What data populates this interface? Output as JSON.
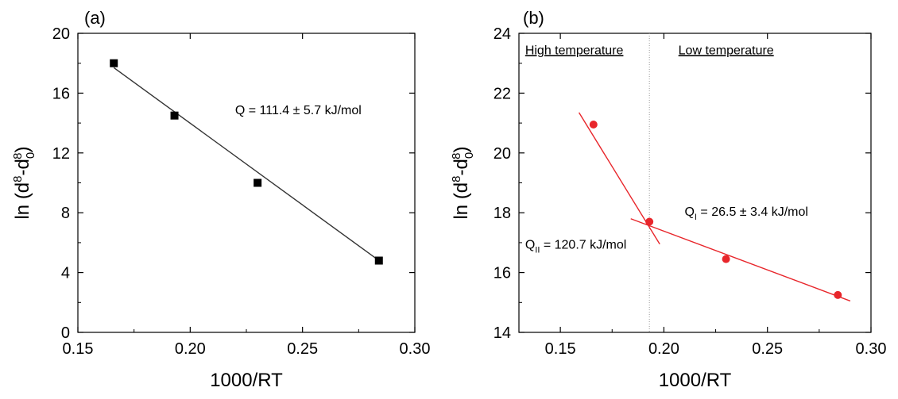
{
  "chart_data": [
    {
      "type": "scatter",
      "panel_label": "(a)",
      "xlabel": "1000/RT",
      "ylabel": "ln (d8-d08)",
      "xlim": [
        0.15,
        0.3
      ],
      "ylim": [
        0,
        20
      ],
      "xticks": [
        "0.15",
        "0.20",
        "0.25",
        "0.30"
      ],
      "yticks": [
        "0",
        "4",
        "8",
        "12",
        "16",
        "20"
      ],
      "marker": "square",
      "color": "#000000",
      "series": [
        {
          "x": [
            0.166,
            0.193,
            0.23,
            0.284
          ],
          "y": [
            18.0,
            14.5,
            10.0,
            4.8
          ]
        }
      ],
      "fit_lines": [
        {
          "x": [
            0.166,
            0.285
          ],
          "y": [
            17.7,
            4.7
          ],
          "color": "#333333"
        }
      ],
      "annotations": [
        {
          "text": "Q = 111.4 ± 5.7 kJ/mol",
          "x": 0.22,
          "y": 14.6
        }
      ]
    },
    {
      "type": "scatter",
      "panel_label": "(b)",
      "xlabel": "1000/RT",
      "ylabel": "ln (d8-d08)",
      "xlim": [
        0.13,
        0.3
      ],
      "ylim": [
        14,
        24
      ],
      "xticks": [
        "0.15",
        "0.20",
        "0.25",
        "0.30"
      ],
      "yticks": [
        "14",
        "16",
        "18",
        "20",
        "22",
        "24"
      ],
      "marker": "circle",
      "color": "#e8262b",
      "series": [
        {
          "x": [
            0.166,
            0.193,
            0.23,
            0.284
          ],
          "y": [
            20.95,
            17.7,
            16.45,
            15.25
          ]
        }
      ],
      "fit_lines": [
        {
          "x": [
            0.159,
            0.198
          ],
          "y": [
            21.35,
            16.95
          ],
          "color": "#e8262b"
        },
        {
          "x": [
            0.184,
            0.29
          ],
          "y": [
            17.8,
            15.05
          ],
          "color": "#e8262b"
        }
      ],
      "divider_x": 0.193,
      "regions": [
        {
          "text": "High temperature",
          "x": 0.133,
          "y": 23.3
        },
        {
          "text": "Low temperature",
          "x": 0.207,
          "y": 23.3
        }
      ],
      "annotations": [
        {
          "main": "Q",
          "sub": "I",
          "rest": " = 26.5 ± 3.4 kJ/mol",
          "x": 0.21,
          "y": 17.9
        },
        {
          "main": "Q",
          "sub": "II",
          "rest": " = 120.7 kJ/mol",
          "x": 0.133,
          "y": 16.8
        }
      ]
    }
  ]
}
